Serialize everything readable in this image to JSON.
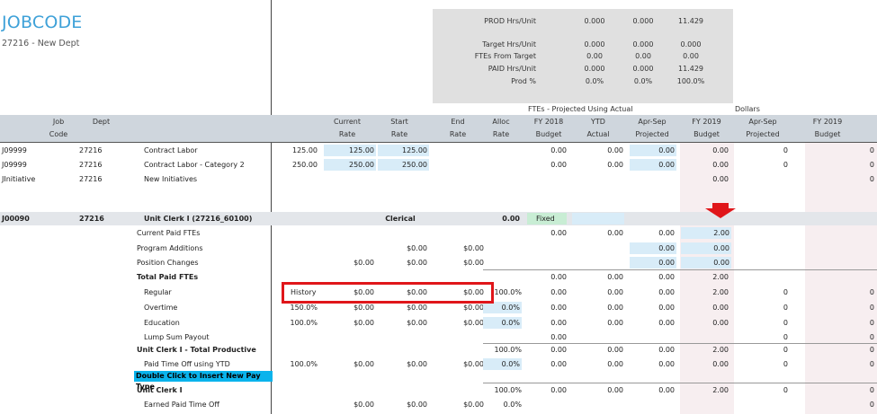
{
  "header": {
    "title": "JOBCODE",
    "subtitle": "27216 - New Dept"
  },
  "summary": {
    "rows": [
      {
        "label": "PROD Hrs/Unit",
        "v1": "0.000",
        "v2": "0.000",
        "v3": "11.429"
      },
      {
        "label": "Target Hrs/Unit",
        "v1": "0.000",
        "v2": "0.000",
        "v3": "0.000"
      },
      {
        "label": "FTEs From Target",
        "v1": "0.00",
        "v2": "0.00",
        "v3": "0.00"
      },
      {
        "label": "PAID Hrs/Unit",
        "v1": "0.000",
        "v2": "0.000",
        "v3": "11.429"
      },
      {
        "label": "Prod %",
        "v1": "0.0%",
        "v2": "0.0%",
        "v3": "100.0%"
      }
    ]
  },
  "sections": {
    "ftes": "FTEs - Projected Using Actual",
    "dollars": "Dollars"
  },
  "columns": {
    "job": [
      "Job",
      "Code"
    ],
    "dept": [
      "",
      "Dept"
    ],
    "current": [
      "Current",
      "Rate"
    ],
    "start": [
      "Start",
      "Rate"
    ],
    "end": [
      "End",
      "Rate"
    ],
    "alloc": [
      "Alloc",
      "Rate"
    ],
    "fy2018": [
      "FY 2018",
      "Budget"
    ],
    "ytd": [
      "YTD",
      "Actual"
    ],
    "aprsep": [
      "Apr-Sep",
      "Projected"
    ],
    "fy2019": [
      "FY 2019",
      "Budget"
    ],
    "d_aprsep": [
      "Apr-Sep",
      "Projected"
    ],
    "d_fy2019": [
      "FY 2019",
      "Budget"
    ]
  },
  "top_rows": [
    {
      "job": "J09999",
      "dept": "27216",
      "desc": "Contract Labor",
      "rate": "125.00",
      "cur": "125.00",
      "start": "125.00",
      "fy18": "0.00",
      "ytd": "0.00",
      "apr": "0.00",
      "fy19": "0.00",
      "dapr": "0",
      "dfy": "0"
    },
    {
      "job": "J09999",
      "dept": "27216",
      "desc": "Contract Labor - Category 2",
      "rate": "250.00",
      "cur": "250.00",
      "start": "250.00",
      "fy18": "0.00",
      "ytd": "0.00",
      "apr": "0.00",
      "fy19": "0.00",
      "dapr": "0",
      "dfy": "0"
    },
    {
      "job": "JInitiative",
      "dept": "27216",
      "desc": "New Initiatives",
      "fy19": "0.00",
      "dfy": "0"
    }
  ],
  "group": {
    "job": "J00090",
    "dept": "27216",
    "desc": "Unit Clerk I (27216_60100)",
    "category": "Clerical",
    "alloc": "0.00",
    "status": "Fixed"
  },
  "detail_rows": [
    {
      "label": "Current Paid FTEs",
      "bold": false,
      "fy18": "0.00",
      "ytd": "0.00",
      "apr": "0.00",
      "fy19": "2.00"
    },
    {
      "label": "Program Additions",
      "start": "$0.00",
      "end": "$0.00",
      "apr": "0.00",
      "fy19": "0.00"
    },
    {
      "label": "Position Changes",
      "cur": "$0.00",
      "start": "$0.00",
      "end": "$0.00",
      "apr": "0.00",
      "fy19": "0.00"
    },
    {
      "label": "Total Paid FTEs",
      "bold": true,
      "fy18": "0.00",
      "ytd": "0.00",
      "apr": "0.00",
      "fy19": "2.00"
    },
    {
      "label": "Regular",
      "indent": true,
      "rate": "History",
      "cur": "$0.00",
      "start": "$0.00",
      "end": "$0.00",
      "alloc": "100.0%",
      "fy18": "0.00",
      "ytd": "0.00",
      "apr": "0.00",
      "fy19": "2.00",
      "dapr": "0",
      "dfy": "0"
    },
    {
      "label": "Overtime",
      "indent": true,
      "rate": "150.0%",
      "cur": "$0.00",
      "start": "$0.00",
      "end": "$0.00",
      "alloc": "0.0%",
      "fy18": "0.00",
      "ytd": "0.00",
      "apr": "0.00",
      "fy19": "0.00",
      "dapr": "0",
      "dfy": "0"
    },
    {
      "label": "Education",
      "indent": true,
      "rate": "100.0%",
      "cur": "$0.00",
      "start": "$0.00",
      "end": "$0.00",
      "alloc": "0.0%",
      "fy18": "0.00",
      "ytd": "0.00",
      "apr": "0.00",
      "fy19": "0.00",
      "dapr": "0",
      "dfy": "0"
    },
    {
      "label": "Lump Sum Payout",
      "indent": true,
      "fy18": "0.00",
      "dapr": "0",
      "dfy": "0"
    },
    {
      "label": "Unit Clerk I - Total Productive",
      "bold": true,
      "alloc": "100.0%",
      "fy18": "0.00",
      "ytd": "0.00",
      "apr": "0.00",
      "fy19": "2.00",
      "dapr": "0",
      "dfy": "0"
    },
    {
      "label": "Paid Time Off using YTD",
      "indent": true,
      "rate": "100.0%",
      "cur": "$0.00",
      "start": "$0.00",
      "end": "$0.00",
      "alloc": "0.0%",
      "fy18": "0.00",
      "ytd": "0.00",
      "apr": "0.00",
      "fy19": "0.00",
      "dapr": "0",
      "dfy": "0"
    },
    {
      "label": "Double Click to Insert New Pay Type",
      "insert": true
    },
    {
      "label": "Unit Clerk I",
      "bold": true,
      "alloc": "100.0%",
      "fy18": "0.00",
      "ytd": "0.00",
      "apr": "0.00",
      "fy19": "2.00",
      "dapr": "0",
      "dfy": "0"
    },
    {
      "label": "Earned Paid Time Off",
      "indent": true,
      "cur": "$0.00",
      "start": "$0.00",
      "end": "$0.00",
      "alloc": "0.0%",
      "dfy": "0"
    }
  ]
}
